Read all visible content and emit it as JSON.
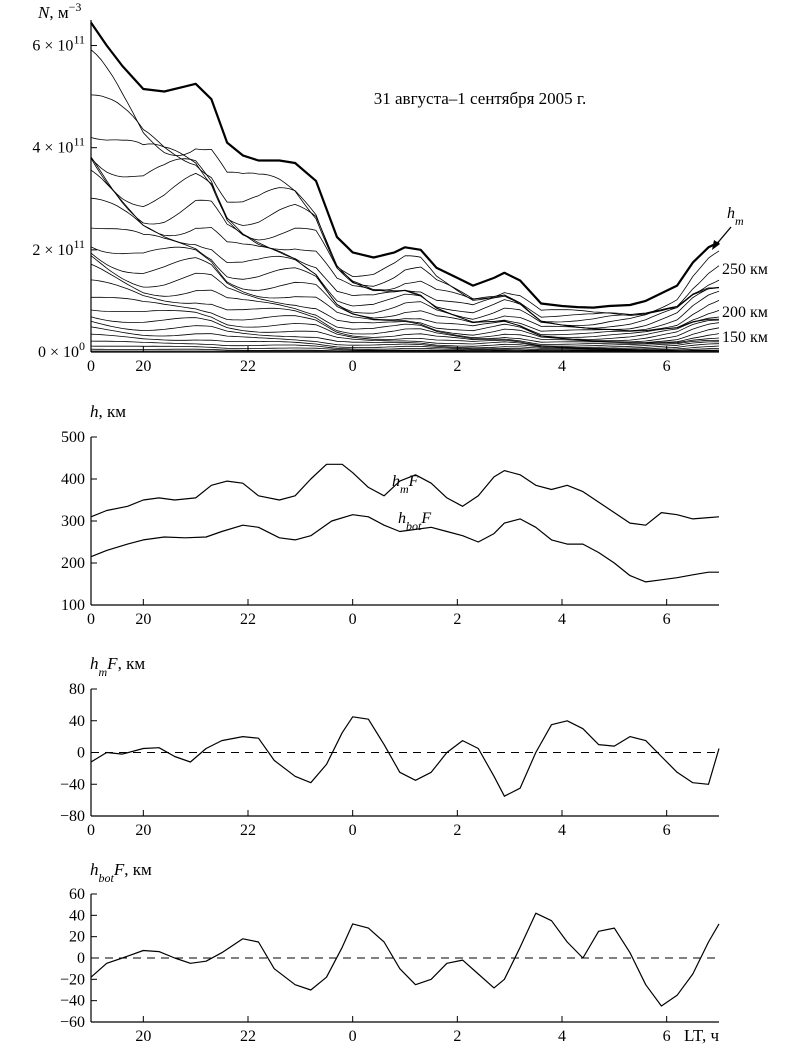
{
  "chart_data": [
    {
      "type": "line",
      "title": "31 августа–1 сентября 2005 г.",
      "ylabel": "N, м⁻³",
      "ylabel_parts": {
        "sym": "N",
        "rest": ", м",
        "sup": "−3"
      },
      "xlim": [
        19,
        7
      ],
      "ylim": [
        0,
        650000000000.0
      ],
      "x_ticks": [
        "0",
        "20",
        "22",
        "0",
        "2",
        "4",
        "6"
      ],
      "y_ticks": [
        {
          "value": 0,
          "base": "0 × 10",
          "exp": "0"
        },
        {
          "value": 200000000000.0,
          "base": "2 × 10",
          "exp": "11"
        },
        {
          "value": 400000000000.0,
          "base": "4 × 10",
          "exp": "11"
        },
        {
          "value": 600000000000.0,
          "base": "6 × 10",
          "exp": "11"
        }
      ],
      "annotations": {
        "hm_sym": "h",
        "hm_sub": "m",
        "a250": "250 км",
        "a200": "200 км",
        "a150": "150 км"
      },
      "series": [
        {
          "x": [
            19.0,
            19.3,
            19.6,
            20.0,
            20.4,
            20.8,
            21.0,
            21.3,
            21.6,
            21.9,
            22.2,
            22.6,
            22.9,
            23.3,
            23.7,
            24.0,
            24.4,
            24.8,
            25.0,
            25.3,
            25.6,
            26.0,
            26.3,
            26.7,
            26.9,
            27.2,
            27.6,
            28.0,
            28.3,
            28.6,
            28.9,
            29.3,
            29.6,
            29.9,
            30.2,
            30.5,
            30.8,
            31.0
          ],
          "y": [
            645000000000.0,
            600000000000.0,
            560000000000.0,
            515000000000.0,
            510000000000.0,
            520000000000.0,
            525000000000.0,
            495000000000.0,
            410000000000.0,
            385000000000.0,
            375000000000.0,
            375000000000.0,
            370000000000.0,
            335000000000.0,
            225000000000.0,
            195000000000.0,
            185000000000.0,
            195000000000.0,
            205000000000.0,
            200000000000.0,
            165000000000.0,
            145000000000.0,
            130000000000.0,
            145000000000.0,
            155000000000.0,
            140000000000.0,
            95000000000.0,
            90000000000.0,
            88000000000.0,
            87000000000.0,
            90000000000.0,
            92000000000.0,
            100000000000.0,
            115000000000.0,
            130000000000.0,
            175000000000.0,
            205000000000.0,
            215000000000.0
          ]
        }
      ]
    },
    {
      "type": "line",
      "ylabel": "h, км",
      "ylabel_parts": {
        "sym": "h",
        "rest": ", км"
      },
      "xlim": [
        19,
        7
      ],
      "ylim": [
        100,
        500
      ],
      "x_ticks": [
        "0",
        "20",
        "22",
        "0",
        "2",
        "4",
        "6"
      ],
      "y_ticks": [
        "100",
        "200",
        "300",
        "400",
        "500"
      ],
      "series_labels": {
        "hm": {
          "sym": "h",
          "sub": "m",
          "tail": "F"
        },
        "hbot": {
          "sym": "h",
          "sub": "bot",
          "tail": "F"
        }
      },
      "series": [
        {
          "x": [
            19.0,
            19.3,
            19.7,
            20.0,
            20.3,
            20.6,
            21.0,
            21.3,
            21.6,
            21.9,
            22.2,
            22.6,
            22.9,
            23.2,
            23.5,
            23.8,
            24.0,
            24.3,
            24.6,
            24.9,
            25.2,
            25.5,
            25.8,
            26.1,
            26.4,
            26.7,
            26.9,
            27.2,
            27.5,
            27.8,
            28.1,
            28.4,
            28.7,
            29.0,
            29.3,
            29.6,
            29.9,
            30.2,
            30.5,
            30.8,
            31.0
          ],
          "y": [
            310,
            325,
            335,
            350,
            355,
            350,
            355,
            385,
            395,
            390,
            360,
            350,
            360,
            400,
            435,
            435,
            415,
            380,
            360,
            395,
            410,
            390,
            355,
            335,
            360,
            405,
            420,
            410,
            385,
            375,
            385,
            370,
            345,
            320,
            295,
            290,
            320,
            315,
            305,
            308,
            310
          ]
        },
        {
          "x": [
            19.0,
            19.3,
            19.7,
            20.0,
            20.4,
            20.8,
            21.2,
            21.5,
            21.9,
            22.2,
            22.6,
            22.9,
            23.2,
            23.6,
            24.0,
            24.3,
            24.6,
            24.9,
            25.2,
            25.5,
            25.8,
            26.1,
            26.4,
            26.7,
            26.9,
            27.2,
            27.5,
            27.8,
            28.1,
            28.4,
            28.7,
            29.0,
            29.3,
            29.6,
            29.9,
            30.2,
            30.5,
            30.8,
            31.0
          ],
          "y": [
            215,
            230,
            245,
            255,
            262,
            260,
            262,
            275,
            290,
            285,
            260,
            255,
            265,
            300,
            315,
            310,
            290,
            275,
            280,
            285,
            275,
            265,
            250,
            270,
            295,
            305,
            285,
            255,
            245,
            245,
            225,
            200,
            170,
            155,
            160,
            165,
            172,
            178,
            178
          ]
        }
      ]
    },
    {
      "type": "line",
      "ylabel": "hmF, км",
      "ylabel_parts": {
        "sym": "h",
        "sub": "m",
        "tail": "F",
        "rest": ", км"
      },
      "xlim": [
        19,
        7
      ],
      "ylim": [
        -80,
        80
      ],
      "x_ticks": [
        "0",
        "20",
        "22",
        "0",
        "2",
        "4",
        "6"
      ],
      "y_ticks": [
        "−80",
        "−40",
        "0",
        "40",
        "80"
      ],
      "series": [
        {
          "x": [
            19.0,
            19.3,
            19.6,
            20.0,
            20.3,
            20.6,
            20.9,
            21.2,
            21.5,
            21.9,
            22.2,
            22.5,
            22.9,
            23.2,
            23.5,
            23.8,
            24.0,
            24.3,
            24.6,
            24.9,
            25.2,
            25.5,
            25.8,
            26.1,
            26.4,
            26.7,
            26.9,
            27.2,
            27.5,
            27.8,
            28.1,
            28.4,
            28.7,
            29.0,
            29.3,
            29.6,
            29.9,
            30.2,
            30.5,
            30.8,
            31.0
          ],
          "y": [
            -12,
            0,
            -2,
            5,
            6,
            -5,
            -12,
            5,
            15,
            20,
            18,
            -10,
            -30,
            -38,
            -15,
            25,
            45,
            42,
            10,
            -25,
            -35,
            -25,
            0,
            15,
            5,
            -30,
            -55,
            -45,
            0,
            35,
            40,
            30,
            10,
            8,
            20,
            15,
            -5,
            -25,
            -38,
            -40,
            5
          ]
        }
      ]
    },
    {
      "type": "line",
      "ylabel": "hbotF, км",
      "ylabel_parts": {
        "sym": "h",
        "sub": "bot",
        "tail": "F",
        "rest": ", км"
      },
      "xlabel": "LT, ч",
      "xlim": [
        19,
        7
      ],
      "ylim": [
        -60,
        60
      ],
      "x_ticks": [
        "20",
        "22",
        "0",
        "2",
        "4",
        "6"
      ],
      "y_ticks": [
        "−60",
        "−40",
        "−20",
        "0",
        "20",
        "40",
        "60"
      ],
      "series": [
        {
          "x": [
            19.0,
            19.3,
            19.6,
            20.0,
            20.3,
            20.6,
            20.9,
            21.2,
            21.5,
            21.9,
            22.2,
            22.5,
            22.9,
            23.2,
            23.5,
            23.8,
            24.0,
            24.3,
            24.6,
            24.9,
            25.2,
            25.5,
            25.8,
            26.1,
            26.4,
            26.7,
            26.9,
            27.2,
            27.5,
            27.8,
            28.1,
            28.4,
            28.7,
            29.0,
            29.3,
            29.6,
            29.9,
            30.2,
            30.5,
            30.8,
            31.0
          ],
          "y": [
            -18,
            -5,
            0,
            7,
            6,
            0,
            -5,
            -3,
            5,
            18,
            15,
            -10,
            -25,
            -30,
            -18,
            10,
            32,
            28,
            15,
            -10,
            -25,
            -20,
            -5,
            -2,
            -15,
            -28,
            -20,
            10,
            42,
            35,
            15,
            0,
            25,
            28,
            5,
            -25,
            -45,
            -35,
            -15,
            15,
            32
          ]
        }
      ]
    }
  ]
}
